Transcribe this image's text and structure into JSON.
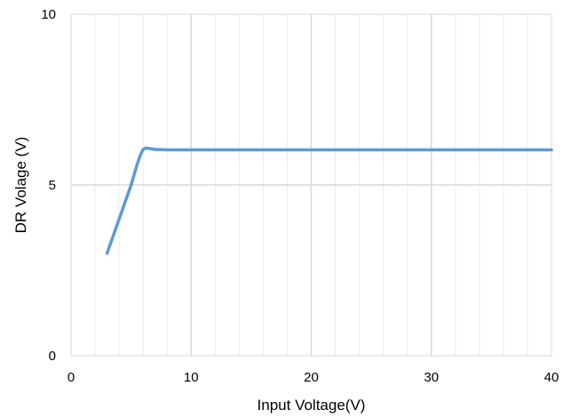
{
  "chart_data": {
    "type": "line",
    "xlabel": "Input Voltage(V)",
    "ylabel": "DR Volage (V)",
    "xlim": [
      0,
      40
    ],
    "ylim": [
      0,
      10
    ],
    "x_ticks": [
      "0",
      "10",
      "20",
      "30",
      "40"
    ],
    "y_ticks": [
      "0",
      "5",
      "10"
    ],
    "x_major_step": 10,
    "x_minor_step": 2,
    "y_major_step": 5,
    "grid": true,
    "legend": "none",
    "colors": {
      "line": "#5b9bd5",
      "major_grid": "#d9d9d9",
      "minor_grid": "#ececec"
    },
    "series": [
      {
        "x": [
          3,
          4,
          5,
          5.5,
          5.8,
          6,
          6.2,
          6.5,
          7,
          8,
          10,
          15,
          20,
          25,
          30,
          35,
          40
        ],
        "y": [
          3.0,
          4.0,
          5.0,
          5.6,
          5.9,
          6.04,
          6.08,
          6.07,
          6.04,
          6.03,
          6.03,
          6.03,
          6.03,
          6.03,
          6.03,
          6.03,
          6.03
        ]
      }
    ]
  }
}
